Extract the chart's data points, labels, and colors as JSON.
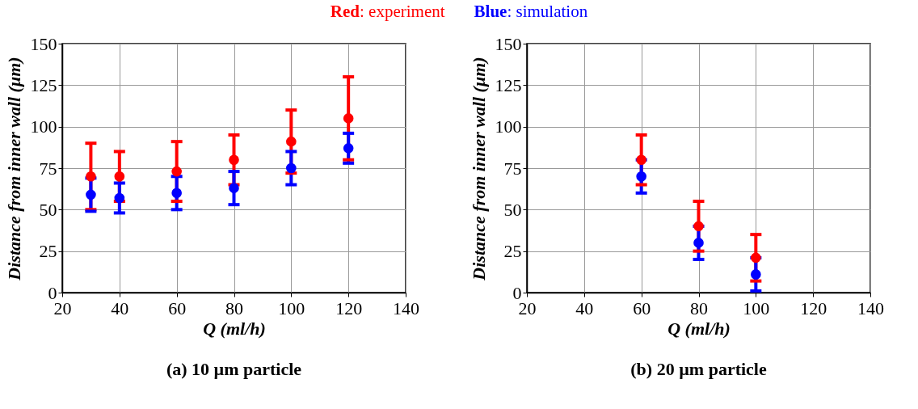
{
  "chart_data": [
    {
      "type": "scatter",
      "title": "(a) 10 µm particle",
      "xlabel": "Q (ml/h)",
      "ylabel": "Distance from inner wall (μm)",
      "legend": "top",
      "grid": true,
      "marker": "circle",
      "x": [
        30,
        40,
        60,
        80,
        100,
        120
      ],
      "xlim": [
        20,
        140
      ],
      "xticks": [
        20,
        40,
        60,
        80,
        100,
        120,
        140
      ],
      "ylim": [
        0,
        150
      ],
      "yticks": [
        0,
        25,
        50,
        75,
        100,
        125,
        150
      ],
      "series": [
        {
          "name": "Red: experiment",
          "color": "#ff0000",
          "values": [
            70,
            70,
            73,
            80,
            91,
            105
          ],
          "errors": [
            20,
            15,
            18,
            15,
            19,
            25
          ]
        },
        {
          "name": "Blue: simulation",
          "color": "#0000ff",
          "values": [
            59,
            57,
            60,
            63,
            75,
            87
          ],
          "errors": [
            10,
            9,
            10,
            10,
            10,
            9
          ]
        }
      ]
    },
    {
      "type": "scatter",
      "title": "(b) 20 µm particle",
      "xlabel": "Q (ml/h)",
      "ylabel": "Distance from inner wall (μm)",
      "grid": true,
      "marker": "circle",
      "x": [
        60,
        80,
        100
      ],
      "xlim": [
        20,
        140
      ],
      "xticks": [
        20,
        40,
        60,
        80,
        100,
        120,
        140
      ],
      "ylim": [
        0,
        150
      ],
      "yticks": [
        0,
        25,
        50,
        75,
        100,
        125,
        150
      ],
      "series": [
        {
          "color": "#ff0000",
          "values": [
            80,
            40,
            21
          ],
          "errors": [
            15,
            15,
            14
          ]
        },
        {
          "color": "#0000ff",
          "values": [
            70,
            30,
            11
          ],
          "errors": [
            10,
            10,
            10
          ]
        }
      ]
    }
  ]
}
